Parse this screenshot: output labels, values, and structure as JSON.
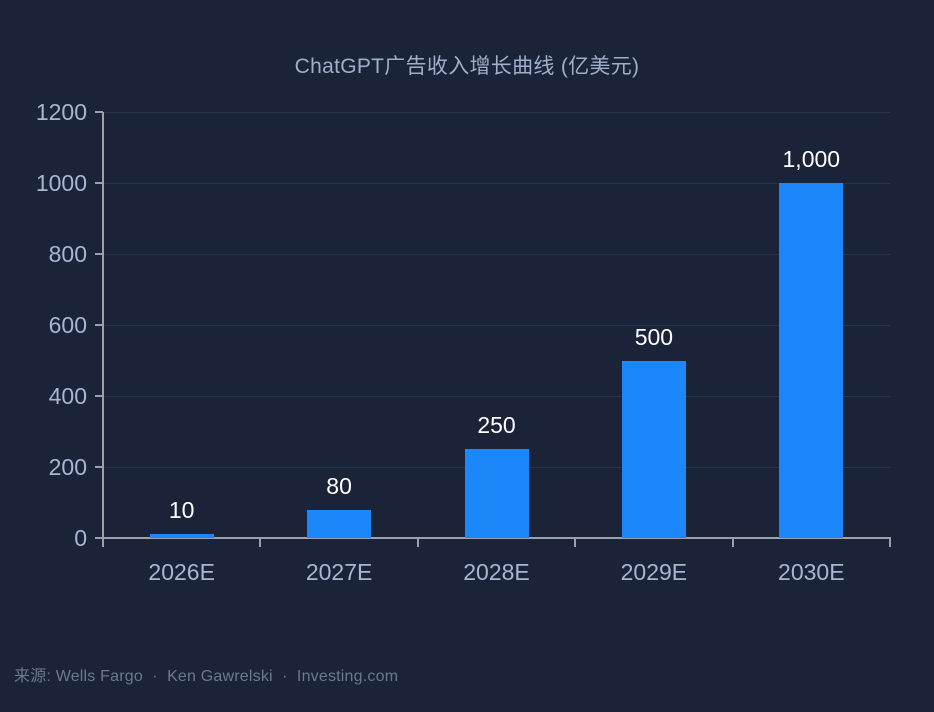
{
  "title": "ChatGPT广告收入增长曲线 (亿美元)",
  "source": "来源: Wells Fargo  ·  Ken Gawrelski  ·  Investing.com",
  "colors": {
    "background": "#1a2337",
    "bar": "#1b87f9",
    "axis": "#9aa0ac",
    "gridline": "#263450",
    "tick_label": "#a8b6d3",
    "title_text": "#9fafca",
    "value_label": "#ffffff",
    "source_text": "#6d7890"
  },
  "chart_data": {
    "type": "bar",
    "title": "ChatGPT广告收入增长曲线 (亿美元)",
    "categories": [
      "2026E",
      "2027E",
      "2028E",
      "2029E",
      "2030E"
    ],
    "values": [
      10,
      80,
      250,
      500,
      1000
    ],
    "value_labels": [
      "10",
      "80",
      "250",
      "500",
      "1,000"
    ],
    "xlabel": "",
    "ylabel": "",
    "ylim": [
      0,
      1200
    ],
    "yticks": [
      0,
      200,
      400,
      600,
      800,
      1000,
      1200
    ],
    "grid": true,
    "legend": false,
    "source": "来源: Wells Fargo  ·  Ken Gawrelski  ·  Investing.com"
  }
}
